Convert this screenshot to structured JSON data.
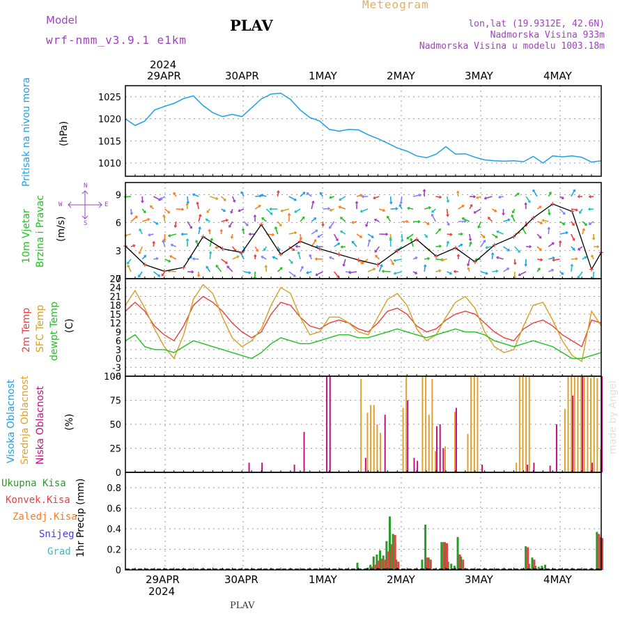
{
  "header": {
    "model_label": "Model",
    "model_name": "wrf-nmm_v3.9.1 e1km",
    "station": "PLAV",
    "chart_kind": "Meteogram",
    "coords": "lon,lat (19.9312E, 42.6N)",
    "elevation": "Nadmorska Visina 933m",
    "model_elevation": "Nadmorska Visina u modelu 1003.18m"
  },
  "footer": {
    "station": "PLAV",
    "watermark": "made by Angel"
  },
  "time_axis": {
    "year": "2024",
    "labels": [
      "29APR",
      "30APR",
      "1MAY",
      "2MAY",
      "3MAY",
      "4MAY"
    ]
  },
  "compass": {
    "n": "N",
    "s": "S",
    "e": "E",
    "w": "W"
  },
  "colors": {
    "pressure": "#1ea0e6",
    "wind_label": "#22c022",
    "temp": "#e84040",
    "sfc_temp": "#d4a020",
    "dewpt": "#22c022",
    "hi_cloud": "#1ea0e6",
    "mid_cloud": "#e0a030",
    "low_cloud": "#c01080",
    "total_precip": "#2a9a2a",
    "conv_precip": "#e84040",
    "stratiform": "#ff7a20",
    "snow": "#4040e0",
    "hail": "#30c0c0",
    "model": "#a040c0"
  },
  "panel_labels": {
    "pressure": {
      "title": "Pritisak na nivou mora",
      "unit": "(hPa)"
    },
    "wind": {
      "title1": "10m Vjetar",
      "title2": "Brzina i Pravac",
      "unit": "(m/s)"
    },
    "temp": {
      "l1": "2m Temp",
      "l2": "SFC Temp",
      "l3": "dewpt Temp",
      "unit": "(C)"
    },
    "cloud": {
      "l1": "Visoka Oblacnost",
      "l2": "Srednja Oblacnost",
      "l3": "Niska Oblacnost",
      "unit": "(%)"
    },
    "precip": {
      "l1": "Ukupna Kisa",
      "l2": "Konvek.Kisa",
      "l3": "Zaledj.Kisa",
      "l4": "Snijeg",
      "l5": "Grad",
      "title": "1hr Precip (mm)"
    }
  },
  "chart_data": [
    {
      "type": "line",
      "name": "pressure",
      "ylabel": "(hPa)",
      "ylim": [
        1007,
        1027.5
      ],
      "yticks": [
        "1010",
        "1015",
        "1020",
        "1025"
      ],
      "x": [
        0,
        3,
        6,
        9,
        12,
        15,
        18,
        21,
        24,
        27,
        30,
        33,
        36,
        39,
        42,
        45,
        48,
        51,
        54,
        57,
        60,
        63,
        66,
        69,
        72,
        75,
        78,
        81,
        84,
        87,
        90,
        93,
        96,
        99,
        102,
        105,
        108,
        111,
        114,
        117,
        120,
        123,
        126,
        129,
        132,
        135,
        138,
        141,
        144,
        147
      ],
      "series": [
        {
          "values": [
            1020,
            1018.5,
            1019.5,
            1022,
            1022.8,
            1023.5,
            1024.6,
            1025.2,
            1023,
            1021.4,
            1020.5,
            1021,
            1020.5,
            1022.5,
            1024.5,
            1025.6,
            1025.8,
            1024.4,
            1022,
            1020.3,
            1019.5,
            1017.6,
            1017.2,
            1017.6,
            1017.5,
            1016.4,
            1015.5,
            1014.5,
            1013.4,
            1012.7,
            1011.6,
            1011.2,
            1012,
            1013.7,
            1012,
            1012.1,
            1011.3,
            1010.7,
            1010.5,
            1010.4,
            1010.5,
            1010.3,
            1011.5,
            1010,
            1011.6,
            1011.4,
            1011.6,
            1011.3,
            1010.2,
            1010.5
          ]
        }
      ]
    },
    {
      "type": "line",
      "name": "wind",
      "ylabel": "(m/s)",
      "ylim": [
        0,
        10.3
      ],
      "yticks": [
        "0",
        "3",
        "6",
        "9"
      ],
      "x": [
        0,
        6,
        12,
        18,
        24,
        30,
        36,
        42,
        48,
        54,
        60,
        66,
        72,
        78,
        84,
        90,
        96,
        102,
        108,
        114,
        120,
        126,
        132,
        138,
        144,
        147
      ],
      "series": [
        {
          "values": [
            3.5,
            1.5,
            0.8,
            1.2,
            4.5,
            3.2,
            2.8,
            5.8,
            2.6,
            4,
            3.2,
            2.6,
            2,
            1.5,
            3,
            4.2,
            2.4,
            3.3,
            1.8,
            3.6,
            4.5,
            6.5,
            8,
            7.2,
            1,
            2.8
          ]
        }
      ]
    },
    {
      "type": "line",
      "name": "temperature",
      "ylabel": "(C)",
      "ylim": [
        -6,
        27
      ],
      "yticks": [
        "-6",
        "-3",
        "0",
        "3",
        "6",
        "9",
        "12",
        "15",
        "18",
        "21",
        "24",
        "27"
      ],
      "x": [
        0,
        3,
        6,
        9,
        12,
        15,
        18,
        21,
        24,
        27,
        30,
        33,
        36,
        39,
        42,
        45,
        48,
        51,
        54,
        57,
        60,
        63,
        66,
        69,
        72,
        75,
        78,
        81,
        84,
        87,
        90,
        93,
        96,
        99,
        102,
        105,
        108,
        111,
        114,
        117,
        120,
        123,
        126,
        129,
        132,
        135,
        138,
        141,
        144,
        147
      ],
      "series": [
        {
          "name": "2m Temp",
          "values": [
            16,
            19,
            16,
            11,
            8,
            6,
            11,
            18,
            21,
            19,
            16,
            12,
            9,
            7,
            9,
            15,
            19,
            18,
            14,
            11,
            10,
            12,
            13,
            12,
            10,
            9,
            12,
            16,
            17,
            15,
            11,
            9,
            10,
            13,
            15,
            16,
            15,
            12,
            9,
            7,
            6,
            10,
            12,
            13,
            11,
            8,
            6,
            4,
            13,
            12
          ]
        },
        {
          "name": "SFC Temp",
          "values": [
            18,
            23,
            17,
            10,
            4,
            0,
            8,
            20,
            25,
            22,
            14,
            7,
            4,
            6,
            10,
            18,
            24,
            22,
            14,
            8,
            9,
            14,
            14,
            12,
            9,
            8,
            14,
            20,
            22,
            18,
            10,
            6,
            8,
            14,
            19,
            21,
            17,
            9,
            4,
            2,
            3,
            11,
            18,
            19,
            13,
            6,
            1,
            -1,
            16,
            11
          ]
        },
        {
          "name": "dewpt Temp",
          "values": [
            6,
            8,
            4,
            3,
            3,
            2,
            4,
            6,
            5,
            4,
            3,
            2,
            1,
            0,
            2,
            5,
            7,
            6,
            5,
            5,
            6,
            7,
            8,
            8,
            7,
            7,
            8,
            9,
            10,
            9,
            8,
            7,
            8,
            9,
            10,
            9,
            9,
            8,
            6,
            5,
            4,
            5,
            6,
            5,
            4,
            2,
            0,
            0,
            1,
            2
          ]
        }
      ]
    },
    {
      "type": "bar",
      "name": "cloud",
      "ylabel": "(%)",
      "ylim": [
        0,
        100
      ],
      "yticks": [
        "0",
        "25",
        "50",
        "75",
        "100"
      ],
      "series": [
        {
          "name": "Srednja Oblacnost",
          "x": [
            73,
            75,
            76,
            77,
            78,
            79,
            86,
            87,
            92,
            93,
            94,
            95,
            96,
            99,
            102,
            106,
            107,
            108,
            109,
            121,
            122,
            123,
            124,
            125,
            136,
            137,
            138,
            139,
            140,
            141,
            142,
            143,
            144,
            145,
            146,
            147
          ],
          "values": [
            97,
            62,
            70,
            70,
            50,
            41,
            67,
            100,
            100,
            100,
            60,
            97,
            22,
            27,
            63,
            40,
            100,
            100,
            100,
            10,
            100,
            100,
            100,
            100,
            66,
            100,
            100,
            100,
            100,
            100,
            100,
            100,
            98,
            100,
            98,
            24
          ]
        },
        {
          "name": "Niska Oblacnost",
          "x": [
            38,
            42,
            52,
            55,
            62,
            63,
            74,
            80,
            87,
            89,
            90,
            96,
            97,
            98,
            102,
            110,
            124,
            126,
            131,
            133,
            138,
            141,
            144,
            147
          ],
          "values": [
            10,
            10,
            8,
            42,
            100,
            100,
            15,
            60,
            75,
            15,
            12,
            48,
            50,
            25,
            67,
            8,
            8,
            10,
            7,
            50,
            80,
            100,
            10,
            100
          ]
        }
      ]
    },
    {
      "type": "bar",
      "name": "precipitation",
      "ylabel": "1hr Precip (mm)",
      "ylim": [
        0,
        0.95
      ],
      "yticks": [
        "0",
        "0.2",
        "0.4",
        "0.6",
        "0.8"
      ],
      "series": [
        {
          "name": "Ukupna Kisa",
          "x": [
            62,
            72,
            75,
            76,
            77,
            78,
            79,
            80,
            81,
            82,
            83,
            84,
            92,
            93,
            94,
            96,
            98,
            99,
            100,
            101,
            102,
            103,
            104,
            124,
            125,
            126,
            127,
            128,
            129,
            130,
            131,
            146,
            147
          ],
          "values": [
            0.02,
            0.07,
            0.02,
            0.05,
            0.13,
            0.15,
            0.19,
            0.14,
            0.28,
            0.52,
            0.35,
            0.1,
            0.1,
            0.44,
            0.12,
            0.01,
            0.27,
            0.27,
            0.08,
            0.06,
            0.04,
            0.32,
            0.13,
            0.23,
            0.06,
            0.12,
            0.04,
            0.03,
            0.04,
            0.05,
            0.01,
            0.37,
            0.32
          ]
        },
        {
          "name": "Konvek.Kisa",
          "x": [
            76,
            77,
            78,
            79,
            80,
            81,
            82,
            83,
            84,
            93,
            94,
            98,
            99,
            103,
            104,
            124,
            126,
            146,
            147
          ],
          "values": [
            0.03,
            0.05,
            0.09,
            0.11,
            0.1,
            0.18,
            0.25,
            0.34,
            0.08,
            0.12,
            0.1,
            0.27,
            0.26,
            0.15,
            0.1,
            0.22,
            0.1,
            0.35,
            0.31
          ]
        }
      ]
    }
  ]
}
